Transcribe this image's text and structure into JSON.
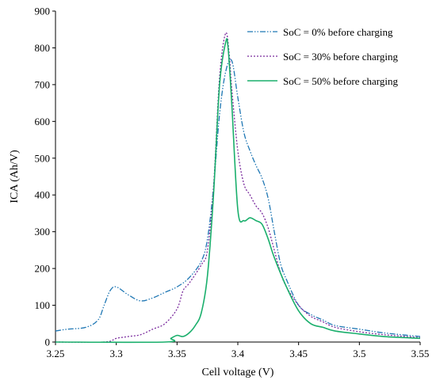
{
  "chart_data": {
    "type": "line",
    "title": "",
    "xlabel": "Cell voltage (V)",
    "ylabel": "ICA (Ah/V)",
    "xlim": [
      3.25,
      3.55
    ],
    "ylim": [
      0,
      900
    ],
    "xticks": [
      "3.25",
      "3.3",
      "3.35",
      "3.4",
      "3.45",
      "3.5",
      "3.55"
    ],
    "yticks": [
      "0",
      "100",
      "200",
      "300",
      "400",
      "500",
      "600",
      "700",
      "800",
      "900"
    ],
    "grid": false,
    "legend_position": "top-right",
    "series": [
      {
        "name": "SoC = 0% before charging",
        "color": "#1f77b4",
        "style": "dash-dot-dot",
        "x": [
          3.25,
          3.26,
          3.275,
          3.285,
          3.29,
          3.295,
          3.3,
          3.31,
          3.32,
          3.33,
          3.34,
          3.35,
          3.36,
          3.37,
          3.375,
          3.38,
          3.385,
          3.39,
          3.395,
          3.4,
          3.405,
          3.41,
          3.415,
          3.42,
          3.425,
          3.43,
          3.435,
          3.44,
          3.45,
          3.46,
          3.47,
          3.48,
          3.5,
          3.52,
          3.55
        ],
        "y": [
          30,
          35,
          40,
          60,
          100,
          140,
          150,
          128,
          112,
          120,
          135,
          150,
          175,
          220,
          280,
          420,
          620,
          735,
          765,
          665,
          570,
          520,
          480,
          445,
          390,
          300,
          215,
          170,
          100,
          75,
          60,
          45,
          35,
          25,
          15
        ]
      },
      {
        "name": "SoC = 30% before charging",
        "color": "#7b2c9e",
        "style": "dotted",
        "x": [
          3.25,
          3.29,
          3.3,
          3.31,
          3.32,
          3.33,
          3.34,
          3.35,
          3.355,
          3.36,
          3.37,
          3.375,
          3.38,
          3.385,
          3.39,
          3.393,
          3.395,
          3.4,
          3.405,
          3.41,
          3.415,
          3.42,
          3.425,
          3.43,
          3.435,
          3.44,
          3.45,
          3.46,
          3.47,
          3.48,
          3.5,
          3.52,
          3.55
        ],
        "y": [
          0,
          0,
          10,
          15,
          20,
          35,
          50,
          90,
          140,
          160,
          210,
          250,
          420,
          720,
          840,
          780,
          690,
          520,
          430,
          400,
          370,
          350,
          310,
          250,
          190,
          150,
          100,
          70,
          55,
          40,
          28,
          20,
          12
        ]
      },
      {
        "name": "SoC = 50% before charging",
        "color": "#1aaf6c",
        "style": "solid",
        "x": [
          3.25,
          3.34,
          3.345,
          3.35,
          3.355,
          3.36,
          3.365,
          3.37,
          3.375,
          3.38,
          3.385,
          3.39,
          3.392,
          3.395,
          3.4,
          3.405,
          3.41,
          3.415,
          3.42,
          3.425,
          3.43,
          3.44,
          3.45,
          3.46,
          3.47,
          3.48,
          3.5,
          3.52,
          3.55
        ],
        "y": [
          0,
          0,
          10,
          18,
          15,
          25,
          45,
          80,
          180,
          400,
          700,
          815,
          800,
          650,
          360,
          330,
          338,
          330,
          320,
          280,
          230,
          150,
          85,
          50,
          40,
          30,
          22,
          15,
          10
        ]
      }
    ]
  }
}
